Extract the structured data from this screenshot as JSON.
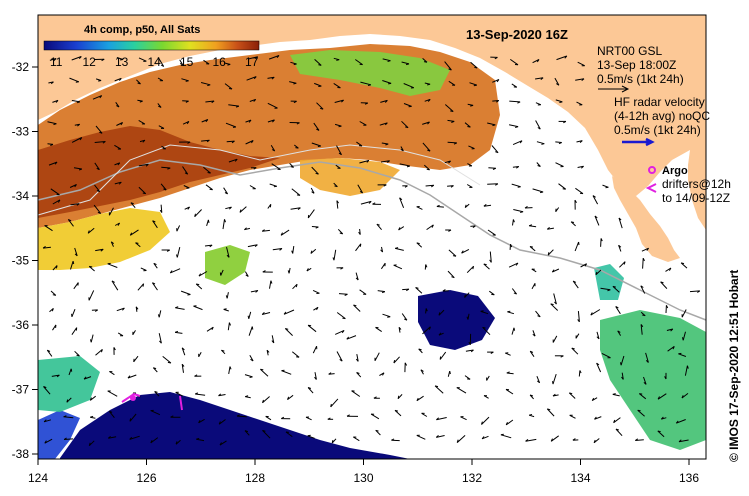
{
  "title": "13-Sep-2020 16Z",
  "colorbar": {
    "title": "4h comp, p50, All Sats",
    "ticks": [
      "11",
      "12",
      "13",
      "14",
      "15",
      "16",
      "17"
    ],
    "colors": [
      "#0a0a7a",
      "#1a3fd0",
      "#1aa0e0",
      "#2ad0a0",
      "#7ad830",
      "#e0e020",
      "#f0a020",
      "#c85018",
      "#8a2008"
    ]
  },
  "legend": {
    "nrt_title": "NRT00 GSL",
    "nrt_time": "13-Sep 18:00Z",
    "nrt_scale": "0.5m/s (1kt 24h)",
    "hf_title": "HF radar velocity",
    "hf_avg": "(4-12h avg) noQC",
    "hf_scale": "0.5m/s (1kt 24h)",
    "argo_label": "Argo",
    "drifters_label": "drifters@12h",
    "drifters_to": "to 14/09-12Z"
  },
  "axes": {
    "x_ticks": [
      "124",
      "126",
      "128",
      "130",
      "132",
      "134",
      "136"
    ],
    "y_ticks": [
      "-32",
      "-33",
      "-34",
      "-35",
      "-36",
      "-37",
      "-38"
    ]
  },
  "credit": "© IMOS 17-Sep-2020 12:51 Hobart",
  "colors": {
    "land": "#fcc896",
    "ocean": "#ffffff",
    "frame": "#000000",
    "hf_arrow": "#1a1ad0",
    "argo": "#e020e0",
    "contour": "#a8a8a8"
  }
}
